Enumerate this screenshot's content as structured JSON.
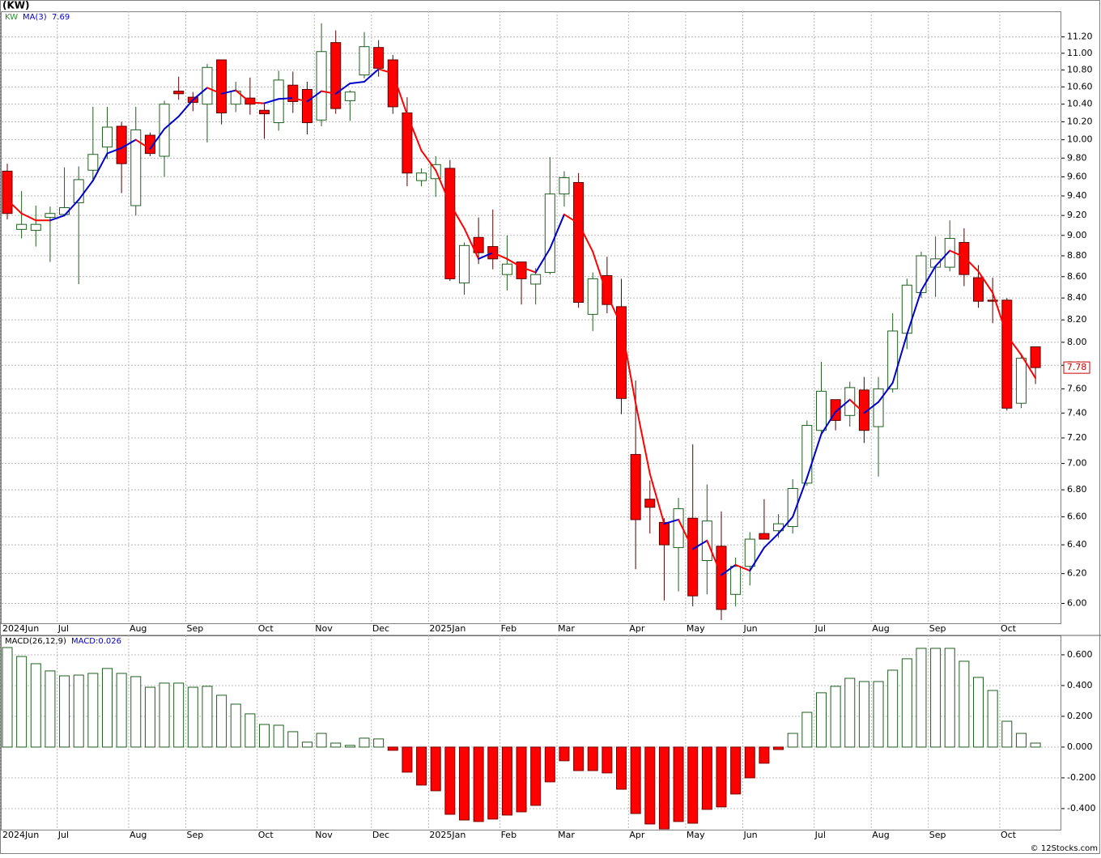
{
  "chart_data": [
    {
      "type": "candlestick",
      "title": "(KW)",
      "symbol": "KW",
      "ma_name": "MA(3)",
      "categories": [
        "2024Jun",
        null,
        null,
        null,
        "Jul",
        null,
        null,
        null,
        null,
        "Aug",
        null,
        null,
        null,
        "Sep",
        null,
        null,
        null,
        null,
        "Oct",
        null,
        null,
        null,
        "Nov",
        null,
        null,
        null,
        "Dec",
        null,
        null,
        null,
        "2025Jan",
        null,
        null,
        null,
        null,
        "Feb",
        null,
        null,
        null,
        "Mar",
        null,
        null,
        null,
        null,
        "Apr",
        null,
        null,
        null,
        "May",
        null,
        null,
        null,
        "Jun",
        null,
        null,
        null,
        null,
        "Jul",
        null,
        null,
        null,
        "Aug",
        null,
        null,
        null,
        "Sep",
        null,
        null,
        null,
        null,
        "Oct",
        null,
        null
      ],
      "open": [
        9.66,
        9.06,
        9.05,
        9.18,
        9.21,
        9.33,
        9.67,
        9.92,
        10.15,
        9.3,
        10.05,
        9.82,
        10.55,
        10.48,
        10.4,
        10.92,
        10.4,
        10.47,
        10.33,
        10.19,
        10.62,
        10.57,
        10.22,
        11.13,
        10.44,
        10.74,
        11.07,
        10.92,
        10.3,
        9.56,
        9.58,
        9.69,
        8.54,
        8.98,
        8.89,
        8.62,
        8.74,
        8.53,
        8.64,
        9.42,
        9.54,
        8.25,
        8.61,
        8.32,
        7.07,
        6.73,
        6.56,
        6.38,
        6.59,
        6.29,
        6.39,
        6.06,
        6.25,
        6.48,
        6.5,
        6.53,
        6.85,
        7.26,
        7.51,
        7.38,
        7.59,
        7.29,
        7.6,
        8.08,
        8.45,
        8.69,
        8.69,
        8.93,
        8.59,
        8.38,
        8.38,
        7.48,
        7.96
      ],
      "high": [
        9.74,
        9.45,
        9.3,
        9.29,
        9.7,
        9.71,
        10.37,
        10.37,
        10.2,
        10.37,
        10.08,
        10.44,
        10.72,
        10.54,
        10.87,
        10.92,
        10.66,
        10.71,
        10.4,
        10.79,
        10.78,
        10.66,
        11.37,
        11.28,
        10.56,
        11.26,
        11.16,
        10.98,
        10.48,
        9.69,
        9.82,
        9.78,
        8.93,
        9.18,
        9.26,
        9.0,
        8.74,
        8.68,
        9.81,
        9.66,
        9.64,
        8.64,
        8.79,
        8.58,
        7.67,
        6.87,
        6.59,
        6.74,
        7.15,
        6.84,
        6.64,
        6.31,
        6.49,
        6.73,
        6.62,
        6.88,
        7.34,
        7.83,
        7.51,
        7.66,
        7.7,
        7.7,
        8.26,
        8.58,
        8.84,
        8.99,
        9.15,
        9.07,
        8.71,
        8.59,
        8.4,
        7.9,
        7.96
      ],
      "low": [
        9.16,
        8.97,
        8.89,
        8.74,
        9.19,
        8.53,
        9.57,
        9.79,
        9.43,
        9.2,
        9.82,
        9.6,
        10.45,
        10.32,
        9.97,
        10.17,
        10.31,
        10.28,
        10.01,
        10.1,
        10.3,
        10.06,
        10.15,
        10.29,
        10.21,
        10.7,
        10.72,
        10.29,
        9.5,
        9.5,
        9.39,
        8.56,
        8.43,
        8.72,
        8.67,
        8.47,
        8.34,
        8.34,
        8.62,
        9.29,
        8.31,
        8.1,
        8.26,
        7.39,
        6.23,
        6.48,
        6.02,
        6.08,
        5.98,
        6.06,
        5.89,
        5.98,
        6.12,
        6.44,
        6.45,
        6.48,
        6.83,
        7.23,
        7.26,
        7.29,
        7.16,
        6.9,
        7.57,
        7.94,
        8.4,
        8.41,
        8.65,
        8.51,
        8.31,
        8.17,
        7.42,
        7.44,
        7.64
      ],
      "close": [
        9.22,
        9.11,
        9.11,
        9.22,
        9.28,
        9.57,
        9.84,
        10.14,
        9.74,
        10.11,
        9.85,
        10.4,
        10.52,
        10.42,
        10.83,
        10.3,
        10.55,
        10.4,
        10.29,
        10.68,
        10.43,
        10.19,
        11.02,
        10.35,
        10.54,
        11.08,
        10.82,
        10.37,
        9.64,
        9.64,
        9.73,
        8.58,
        8.9,
        8.83,
        8.77,
        8.72,
        8.58,
        8.62,
        9.42,
        9.59,
        8.36,
        8.58,
        8.34,
        7.52,
        6.58,
        6.67,
        6.4,
        6.66,
        6.05,
        6.57,
        5.96,
        6.25,
        6.44,
        6.44,
        6.55,
        6.81,
        7.3,
        7.58,
        7.34,
        7.61,
        7.26,
        7.6,
        8.1,
        8.52,
        8.8,
        8.77,
        8.97,
        8.62,
        8.37,
        8.37,
        7.44,
        7.86,
        7.78
      ],
      "ma": [
        9.36,
        9.22,
        9.15,
        9.15,
        9.2,
        9.36,
        9.56,
        9.85,
        9.91,
        10.0,
        9.9,
        10.12,
        10.26,
        10.45,
        10.59,
        10.52,
        10.56,
        10.42,
        10.41,
        10.46,
        10.47,
        10.43,
        10.55,
        10.52,
        10.64,
        10.66,
        10.81,
        10.76,
        10.28,
        9.88,
        9.67,
        9.32,
        9.07,
        8.77,
        8.83,
        8.77,
        8.69,
        8.64,
        8.87,
        9.21,
        9.12,
        8.84,
        8.43,
        8.15,
        7.48,
        6.92,
        6.55,
        6.58,
        6.37,
        6.43,
        6.19,
        6.26,
        6.22,
        6.38,
        6.48,
        6.6,
        6.89,
        7.23,
        7.41,
        7.51,
        7.4,
        7.49,
        7.65,
        8.07,
        8.47,
        8.7,
        8.85,
        8.79,
        8.65,
        8.45,
        8.06,
        7.89,
        7.69
      ],
      "ylim": [
        5.87,
        11.52
      ],
      "log_scale": true,
      "grid": true,
      "yticks": [
        {
          "value": 6.0,
          "label": "6.00"
        },
        {
          "value": 6.2,
          "label": "6.20"
        },
        {
          "value": 6.4,
          "label": "6.40"
        },
        {
          "value": 6.6,
          "label": "6.60"
        },
        {
          "value": 6.8,
          "label": "6.80"
        },
        {
          "value": 7.0,
          "label": "7.00"
        },
        {
          "value": 7.2,
          "label": "7.20"
        },
        {
          "value": 7.4,
          "label": "7.40"
        },
        {
          "value": 7.6,
          "label": "7.60"
        },
        {
          "value": 7.8,
          "label": "7.80"
        },
        {
          "value": 8.0,
          "label": "8.00"
        },
        {
          "value": 8.2,
          "label": "8.20"
        },
        {
          "value": 8.4,
          "label": "8.40"
        },
        {
          "value": 8.6,
          "label": "8.60"
        },
        {
          "value": 8.8,
          "label": "8.80"
        },
        {
          "value": 9.0,
          "label": "9.00"
        },
        {
          "value": 9.2,
          "label": "9.20"
        },
        {
          "value": 9.4,
          "label": "9.40"
        },
        {
          "value": 9.6,
          "label": "9.60"
        },
        {
          "value": 9.8,
          "label": "9.80"
        },
        {
          "value": 10.0,
          "label": "10.00"
        },
        {
          "value": 10.2,
          "label": "10.20"
        },
        {
          "value": 10.4,
          "label": "10.40"
        },
        {
          "value": 10.6,
          "label": "10.60"
        },
        {
          "value": 10.8,
          "label": "10.80"
        },
        {
          "value": 11.0,
          "label": "11.00"
        },
        {
          "value": 11.2,
          "label": "11.20"
        }
      ],
      "up_color": "#ffffff",
      "up_edge": "#1f5f1f",
      "down_color": "#ff0000",
      "down_edge": "#5a0000",
      "ma_up_color": "#0000cc",
      "ma_down_color": "#ff0000",
      "symbol_color": "#2e8b2e"
    },
    {
      "type": "histogram",
      "title": "MACD(26,12,9)",
      "current_label": "MACD:0.026",
      "categories": [
        "2024Jun",
        null,
        null,
        null,
        "Jul",
        null,
        null,
        null,
        null,
        "Aug",
        null,
        null,
        null,
        "Sep",
        null,
        null,
        null,
        null,
        "Oct",
        null,
        null,
        null,
        "Nov",
        null,
        null,
        null,
        "Dec",
        null,
        null,
        null,
        "2025Jan",
        null,
        null,
        null,
        null,
        "Feb",
        null,
        null,
        null,
        "Mar",
        null,
        null,
        null,
        null,
        "Apr",
        null,
        null,
        null,
        "May",
        null,
        null,
        null,
        "Jun",
        null,
        null,
        null,
        null,
        "Jul",
        null,
        null,
        null,
        "Aug",
        null,
        null,
        null,
        "Sep",
        null,
        null,
        null,
        null,
        "Oct",
        null,
        null
      ],
      "values": [
        0.647,
        0.589,
        0.542,
        0.495,
        0.463,
        0.468,
        0.479,
        0.511,
        0.479,
        0.458,
        0.389,
        0.416,
        0.416,
        0.389,
        0.395,
        0.337,
        0.279,
        0.216,
        0.147,
        0.142,
        0.1,
        0.032,
        0.089,
        0.026,
        0.011,
        0.058,
        0.053,
        -0.021,
        -0.163,
        -0.247,
        -0.284,
        -0.437,
        -0.474,
        -0.484,
        -0.468,
        -0.442,
        -0.421,
        -0.379,
        -0.226,
        -0.089,
        -0.153,
        -0.153,
        -0.168,
        -0.274,
        -0.432,
        -0.5,
        -0.532,
        -0.484,
        -0.495,
        -0.405,
        -0.389,
        -0.305,
        -0.2,
        -0.105,
        -0.016,
        0.089,
        0.226,
        0.353,
        0.395,
        0.447,
        0.426,
        0.426,
        0.5,
        0.574,
        0.642,
        0.642,
        0.642,
        0.558,
        0.453,
        0.368,
        0.168,
        0.089,
        0.026
      ],
      "ylim": [
        -0.537,
        0.726
      ],
      "grid": true,
      "yticks": [
        {
          "value": -0.4,
          "label": "-0.400"
        },
        {
          "value": -0.2,
          "label": "-0.200"
        },
        {
          "value": 0,
          "label": "0.000"
        },
        {
          "value": 0.2,
          "label": "0.200"
        },
        {
          "value": 0.4,
          "label": "0.400"
        },
        {
          "value": 0.6,
          "label": "0.600"
        }
      ],
      "up_color": "#ffffff",
      "up_edge": "#1f5f1f",
      "down_color": "#ff0000",
      "down_edge": "#7a0000"
    }
  ],
  "watermark": "© 12Stocks.com"
}
